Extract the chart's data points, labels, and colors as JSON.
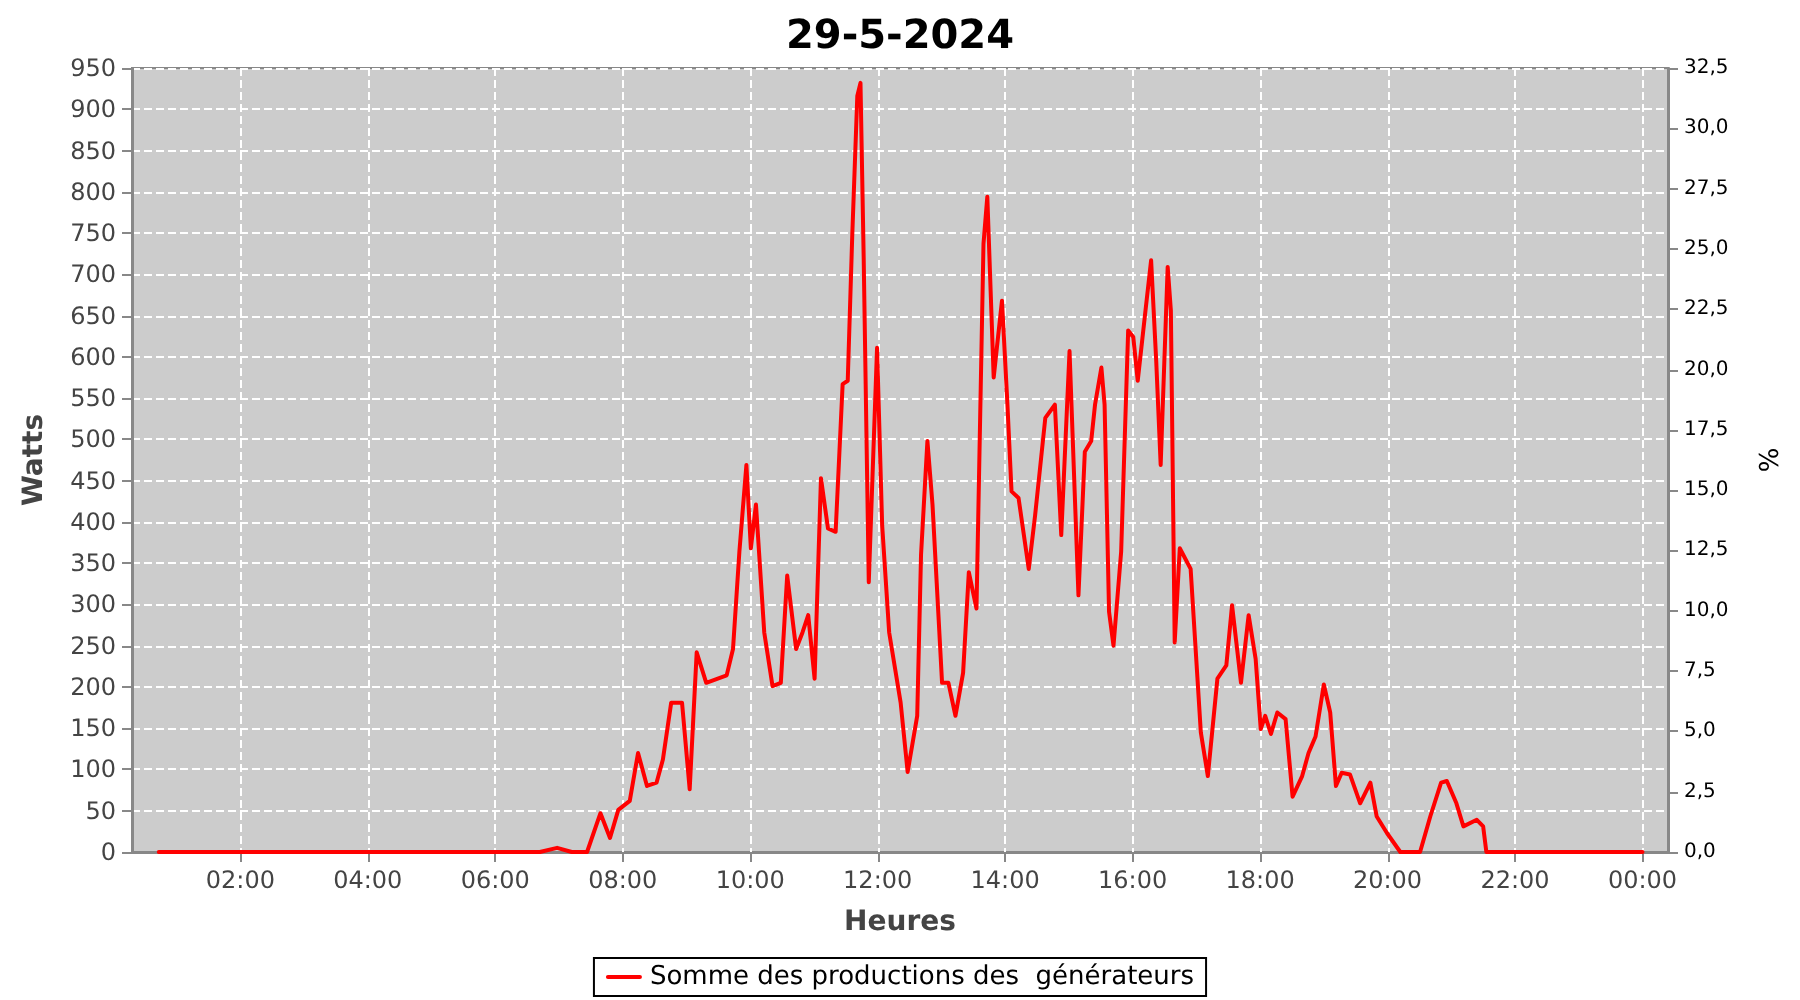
{
  "chart_data": {
    "type": "line",
    "title": "29-5-2024",
    "xlabel": "Heures",
    "ylabel": "Watts",
    "y2label": "%",
    "xlim": [
      0.3,
      24.4
    ],
    "xticks": [
      {
        "value": 2,
        "label": "02:00"
      },
      {
        "value": 4,
        "label": "04:00"
      },
      {
        "value": 6,
        "label": "06:00"
      },
      {
        "value": 8,
        "label": "08:00"
      },
      {
        "value": 10,
        "label": "10:00"
      },
      {
        "value": 12,
        "label": "12:00"
      },
      {
        "value": 14,
        "label": "14:00"
      },
      {
        "value": 16,
        "label": "16:00"
      },
      {
        "value": 18,
        "label": "18:00"
      },
      {
        "value": 20,
        "label": "20:00"
      },
      {
        "value": 22,
        "label": "22:00"
      },
      {
        "value": 24,
        "label": "00:00"
      }
    ],
    "ylim": [
      0,
      950
    ],
    "yticks": [
      0,
      50,
      100,
      150,
      200,
      250,
      300,
      350,
      400,
      450,
      500,
      550,
      600,
      650,
      700,
      750,
      800,
      850,
      900,
      950
    ],
    "y2lim": [
      0,
      32.5
    ],
    "y2ticks": [
      {
        "value": 0,
        "label": "0,0"
      },
      {
        "value": 2.5,
        "label": "2,5"
      },
      {
        "value": 5,
        "label": "5,0"
      },
      {
        "value": 7.5,
        "label": "7,5"
      },
      {
        "value": 10,
        "label": "10,0"
      },
      {
        "value": 12.5,
        "label": "12,5"
      },
      {
        "value": 15,
        "label": "15,0"
      },
      {
        "value": 17.5,
        "label": "17,5"
      },
      {
        "value": 20,
        "label": "20,0"
      },
      {
        "value": 22.5,
        "label": "22,5"
      },
      {
        "value": 25,
        "label": "25,0"
      },
      {
        "value": 27.5,
        "label": "27,5"
      },
      {
        "value": 30,
        "label": "30,0"
      },
      {
        "value": 32.5,
        "label": "32,5"
      }
    ],
    "grid": true,
    "legend": "bottom",
    "marker": "none",
    "line_style": "solid",
    "series": [
      {
        "name": "Somme des productions des  générateurs",
        "color": "#ff0000",
        "x": [
          0.72,
          2,
          4,
          6,
          6.7,
          6.97,
          7.2,
          7.44,
          7.65,
          7.8,
          7.93,
          8.11,
          8.24,
          8.38,
          8.53,
          8.63,
          8.76,
          8.93,
          9.05,
          9.16,
          9.31,
          9.63,
          9.73,
          9.83,
          9.94,
          10.01,
          10.09,
          10.22,
          10.35,
          10.48,
          10.58,
          10.72,
          10.82,
          10.91,
          11.01,
          11.11,
          11.22,
          11.34,
          11.45,
          11.53,
          11.6,
          11.68,
          11.73,
          11.78,
          11.86,
          11.99,
          12.07,
          12.18,
          12.36,
          12.47,
          12.62,
          12.68,
          12.78,
          12.86,
          13.01,
          13.11,
          13.22,
          13.34,
          13.43,
          13.55,
          13.66,
          13.72,
          13.82,
          13.87,
          13.95,
          14.03,
          14.1,
          14.21,
          14.37,
          14.47,
          14.63,
          14.78,
          14.88,
          15.01,
          15.15,
          15.25,
          15.35,
          15.41,
          15.51,
          15.56,
          15.63,
          15.7,
          15.82,
          15.93,
          16.01,
          16.08,
          16.19,
          16.29,
          16.37,
          16.44,
          16.55,
          16.6,
          16.66,
          16.74,
          16.91,
          17.07,
          17.18,
          17.33,
          17.47,
          17.56,
          17.7,
          17.82,
          17.93,
          18.01,
          18.08,
          18.17,
          18.27,
          18.4,
          18.51,
          18.66,
          18.76,
          18.87,
          19,
          19.1,
          19.19,
          19.28,
          19.41,
          19.57,
          19.73,
          19.83,
          19.99,
          20.2,
          20.51,
          20.67,
          20.84,
          20.93,
          21.08,
          21.19,
          21.4,
          21.5,
          21.55,
          22,
          23,
          24
        ],
        "values": [
          0,
          0,
          0,
          0,
          0,
          5,
          0,
          0,
          47,
          17,
          51,
          62,
          120,
          80,
          84,
          112,
          181,
          181,
          76,
          242,
          205,
          214,
          246,
          364,
          469,
          368,
          421,
          266,
          201,
          205,
          335,
          246,
          266,
          287,
          210,
          453,
          392,
          388,
          567,
          571,
          745,
          916,
          932,
          721,
          327,
          611,
          396,
          266,
          181,
          97,
          165,
          360,
          498,
          421,
          205,
          205,
          165,
          217,
          339,
          295,
          737,
          794,
          575,
          611,
          668,
          551,
          437,
          429,
          343,
          408,
          526,
          542,
          384,
          607,
          311,
          485,
          498,
          542,
          587,
          542,
          291,
          250,
          364,
          632,
          624,
          571,
          648,
          717,
          595,
          469,
          709,
          656,
          254,
          368,
          343,
          145,
          92,
          210,
          226,
          299,
          205,
          287,
          234,
          149,
          165,
          143,
          169,
          161,
          67,
          92,
          120,
          140,
          203,
          169,
          80,
          96,
          94,
          59,
          84,
          43,
          23,
          0,
          0,
          43,
          84,
          86,
          59,
          31,
          39,
          31,
          0,
          0,
          0,
          0
        ]
      }
    ]
  }
}
